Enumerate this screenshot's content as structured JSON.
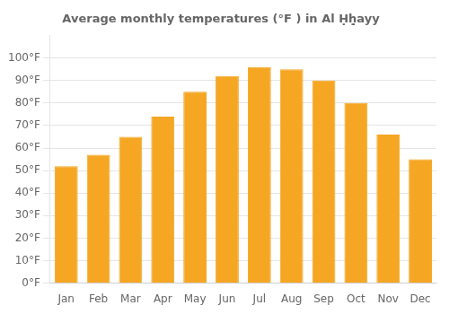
{
  "chart_data": {
    "type": "bar",
    "title": "Average monthly temperatures (°F ) in Al Ḥḥ̣ayy",
    "categories": [
      "Jan",
      "Feb",
      "Mar",
      "Apr",
      "May",
      "Jun",
      "Jul",
      "Aug",
      "Sep",
      "Oct",
      "Nov",
      "Dec"
    ],
    "values": [
      52,
      57,
      65,
      74,
      85,
      92,
      96,
      95,
      90,
      80,
      66,
      55
    ],
    "color": "#F5A623",
    "ylim": [
      0,
      110
    ],
    "yticks": [
      {
        "value": 0,
        "label": "0°F"
      },
      {
        "value": 10,
        "label": "10°F"
      },
      {
        "value": 20,
        "label": "20°F"
      },
      {
        "value": 30,
        "label": "30°F"
      },
      {
        "value": 40,
        "label": "40°F"
      },
      {
        "value": 50,
        "label": "50°F"
      },
      {
        "value": 60,
        "label": "60°F"
      },
      {
        "value": 70,
        "label": "70°F"
      },
      {
        "value": 80,
        "label": "80°F"
      },
      {
        "value": 90,
        "label": "90°F"
      },
      {
        "value": 100,
        "label": "100°F"
      }
    ],
    "grid": true
  }
}
